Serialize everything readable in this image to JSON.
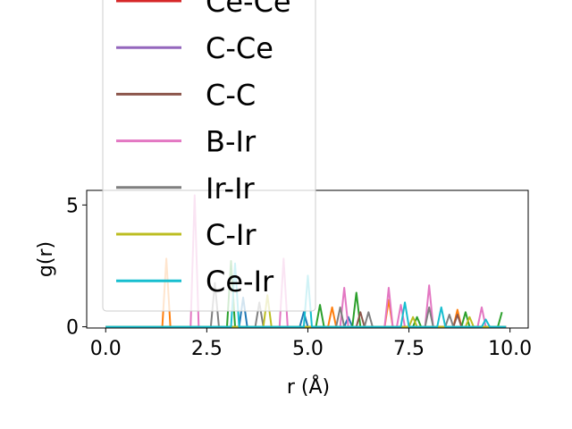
{
  "chart_data": {
    "type": "line",
    "xlabel": "r (Å)",
    "ylabel": "g(r)",
    "xlim": [
      -0.47,
      10.45
    ],
    "ylim": [
      -0.05,
      5.6
    ],
    "xticks": [
      {
        "value": 0,
        "label": "0.0"
      },
      2.5,
      {
        "value": 5,
        "label": "5.0"
      },
      7.5,
      {
        "value": 10,
        "label": "10.0"
      }
    ],
    "yticks": [
      0,
      5
    ],
    "series": [
      {
        "color": "#1f77b4",
        "x": [
          0,
          3.3,
          3.4,
          3.5,
          4.8,
          4.9,
          5.0,
          5.9,
          6.0,
          6.1,
          9.9
        ],
        "values": [
          0,
          0,
          1.2,
          0,
          0,
          0.6,
          0,
          0,
          0.4,
          0,
          0
        ]
      },
      {
        "color": "#ff7f0e",
        "x": [
          0,
          1.4,
          1.5,
          1.6,
          5.5,
          5.6,
          5.7,
          6.9,
          7.0,
          7.1,
          8.6,
          8.7,
          8.8,
          9.9
        ],
        "values": [
          0,
          0,
          2.8,
          0,
          0,
          0.8,
          0,
          0,
          1.1,
          0,
          0,
          0.7,
          0,
          0
        ]
      },
      {
        "color": "#2ca02c",
        "x": [
          0,
          3.0,
          3.1,
          3.2,
          5.2,
          5.3,
          5.4,
          6.1,
          6.2,
          6.3,
          7.6,
          7.7,
          7.8,
          8.8,
          8.9,
          9.0,
          9.7,
          9.8
        ],
        "values": [
          0,
          0,
          2.7,
          0,
          0,
          0.9,
          0,
          0,
          1.4,
          0,
          0,
          0.4,
          0,
          0,
          0.6,
          0,
          0,
          0.6
        ]
      },
      {
        "name": "Ce-Ce",
        "color": "#d62728",
        "x": [
          0,
          9.9
        ],
        "values": [
          0,
          0
        ]
      },
      {
        "name": "C-Ce",
        "color": "#9467bd",
        "x": [
          0,
          9.9
        ],
        "values": [
          0,
          0
        ]
      },
      {
        "name": "C-C",
        "color": "#8c564b",
        "x": [
          0,
          6.2,
          6.3,
          6.4,
          8.6,
          8.7,
          8.8,
          9.9
        ],
        "values": [
          0,
          0,
          0.6,
          0,
          0,
          0.5,
          0,
          0
        ]
      },
      {
        "name": "B-Ir",
        "color": "#e377c2",
        "x": [
          0,
          2.1,
          2.2,
          2.3,
          4.3,
          4.4,
          4.5,
          5.8,
          5.9,
          6.0,
          6.9,
          7.0,
          7.1,
          7.2,
          7.3,
          7.4,
          7.9,
          8.0,
          8.1,
          9.2,
          9.3,
          9.4,
          9.9
        ],
        "values": [
          0,
          0,
          5.4,
          0,
          0,
          2.8,
          0,
          0,
          1.6,
          0,
          0,
          1.6,
          0,
          0,
          0.9,
          0,
          0,
          1.7,
          0,
          0,
          0.8,
          0,
          0
        ]
      },
      {
        "name": "Ir-Ir",
        "color": "#7f7f7f",
        "x": [
          0,
          2.6,
          2.7,
          2.8,
          3.7,
          3.8,
          3.9,
          5.7,
          5.8,
          5.9,
          6.4,
          6.5,
          6.6,
          7.9,
          8.0,
          8.1,
          8.4,
          8.5,
          8.6,
          9.9
        ],
        "values": [
          0,
          0,
          1.8,
          0,
          0,
          1.0,
          0,
          0,
          0.8,
          0,
          0,
          0.6,
          0,
          0,
          0.8,
          0,
          0,
          0.5,
          0,
          0
        ]
      },
      {
        "name": "C-Ir",
        "color": "#bcbd22",
        "x": [
          0,
          3.9,
          4.0,
          4.1,
          7.5,
          7.6,
          7.7,
          8.9,
          9.0,
          9.1,
          9.9
        ],
        "values": [
          0,
          0,
          1.3,
          0,
          0,
          0.4,
          0,
          0,
          0.4,
          0,
          0
        ]
      },
      {
        "name": "Ce-Ir",
        "color": "#17becf",
        "x": [
          0,
          3.1,
          3.2,
          3.3,
          4.9,
          5.0,
          5.1,
          7.3,
          7.4,
          7.5,
          8.2,
          8.3,
          8.4,
          9.3,
          9.4,
          9.5,
          9.9
        ],
        "values": [
          0,
          0,
          2.6,
          0,
          0,
          2.1,
          0,
          0,
          1.0,
          0,
          0,
          0.8,
          0,
          0,
          0.3,
          0,
          0
        ]
      }
    ]
  }
}
